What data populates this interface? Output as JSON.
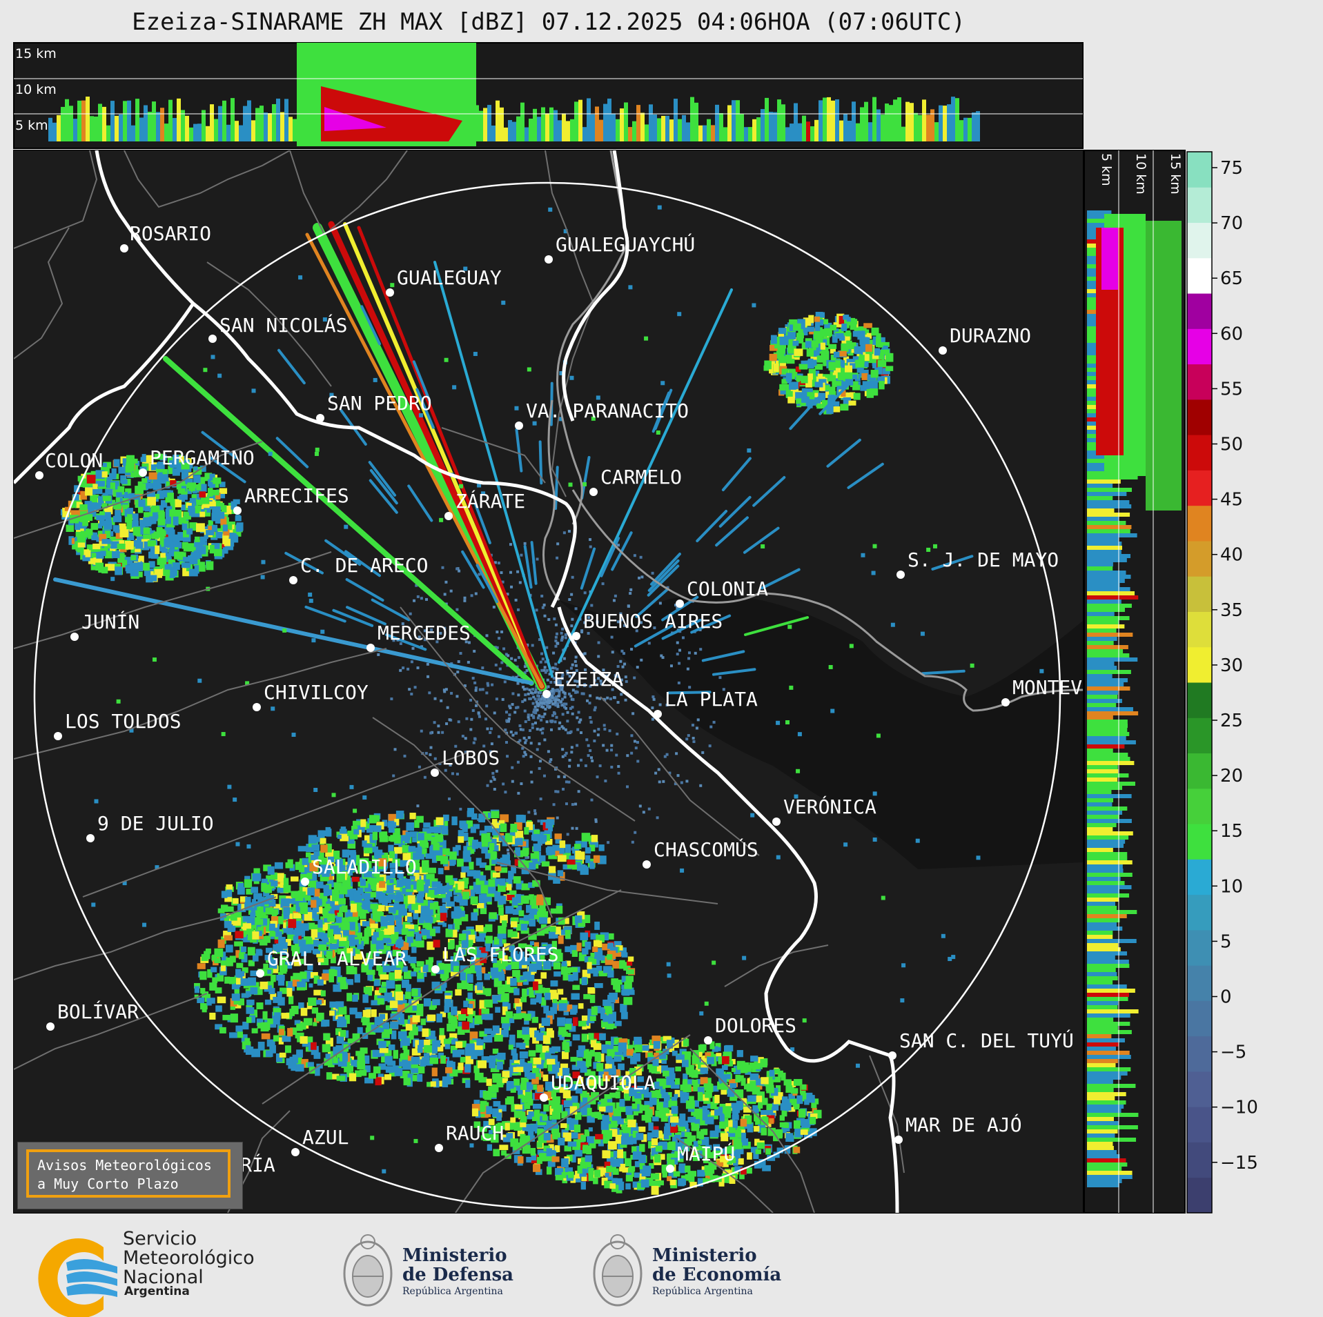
{
  "title": "Ezeiza-SINARAME ZH MAX [dBZ] 07.12.2025 04:06HOA (07:06UTC)",
  "top_panel": {
    "labels": [
      "15 km",
      "10 km",
      "5 km"
    ]
  },
  "side_panel": {
    "labels": [
      "5 km",
      "10 km",
      "15 km"
    ]
  },
  "colorbar": {
    "ticks": [
      "75",
      "70",
      "65",
      "60",
      "55",
      "50",
      "45",
      "40",
      "35",
      "30",
      "25",
      "20",
      "15",
      "10",
      "5",
      "0",
      "−5",
      "−10",
      "−15"
    ],
    "colors": [
      "#3c3f6e",
      "#424a7c",
      "#495489",
      "#4f5f93",
      "#4e6a9a",
      "#4a76a2",
      "#4582aa",
      "#3e8fb3",
      "#369cbd",
      "#2aaad4",
      "#3ee03e",
      "#46d03a",
      "#3ab832",
      "#2a9628",
      "#207a22",
      "#f0ee30",
      "#dede3a",
      "#c8c03a",
      "#d49c2a",
      "#e08420",
      "#e62020",
      "#cc0a0a",
      "#a00000",
      "#c8005a",
      "#e600e6",
      "#a000a0",
      "#ffffff",
      "#e0f4ec",
      "#b4ecd6",
      "#88e0c0"
    ]
  },
  "cities": [
    {
      "name": "ROSARIO"
    },
    {
      "name": "GUALEGUAYCHÚ"
    },
    {
      "name": "GUALEGUAY"
    },
    {
      "name": "SAN NICOLÁS"
    },
    {
      "name": "DURAZNO"
    },
    {
      "name": "SAN PEDRO"
    },
    {
      "name": "VA. PARANACITO"
    },
    {
      "name": "COLON"
    },
    {
      "name": "PERGAMINO"
    },
    {
      "name": "CARMELO"
    },
    {
      "name": "ARRECIFES"
    },
    {
      "name": "ZÁRATE"
    },
    {
      "name": "C. DE ARECO"
    },
    {
      "name": "S. J. DE MAYO"
    },
    {
      "name": "COLONIA"
    },
    {
      "name": "JUNÍN"
    },
    {
      "name": "BUENOS AIRES"
    },
    {
      "name": "MERCEDES"
    },
    {
      "name": "EZEIZA"
    },
    {
      "name": "MONTEV"
    },
    {
      "name": "CHIVILCOY"
    },
    {
      "name": "LA PLATA"
    },
    {
      "name": "LOS TOLDOS"
    },
    {
      "name": "LOBOS"
    },
    {
      "name": "VERÓNICA"
    },
    {
      "name": "9 DE JULIO"
    },
    {
      "name": "CHASCOMÚS"
    },
    {
      "name": "SALADILLO"
    },
    {
      "name": "GRAL. ALVEAR"
    },
    {
      "name": "LAS FLORES"
    },
    {
      "name": "BOLÍVAR"
    },
    {
      "name": "DOLORES"
    },
    {
      "name": "SAN C. DEL TUYÚ"
    },
    {
      "name": "UDAQUIOLA"
    },
    {
      "name": "MAR DE AJÓ"
    },
    {
      "name": "AZUL"
    },
    {
      "name": "RAUCH"
    },
    {
      "name": "OLAVARRÍA"
    },
    {
      "name": "MAIPÚ"
    }
  ],
  "warning_box": {
    "line1": "Avisos Meteorológicos",
    "line2": "a Muy Corto Plazo"
  },
  "logos": {
    "smn": {
      "line1": "Servicio",
      "line2": "Meteorológico",
      "line3": "Nacional",
      "country": "Argentina"
    },
    "defensa": {
      "line1": "Ministerio",
      "line2": "de Defensa",
      "sub": "República Argentina"
    },
    "economia": {
      "line1": "Ministerio",
      "line2": "de Economía",
      "sub": "República Argentina"
    }
  }
}
